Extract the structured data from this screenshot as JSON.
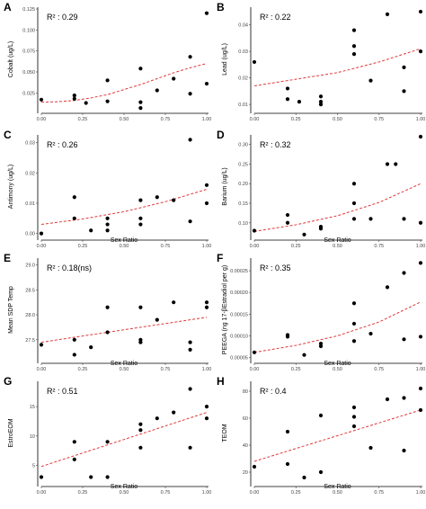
{
  "chart_data": [
    {
      "panel": "A",
      "type": "scatter",
      "r2_label": "R² : 0.29",
      "xlabel": "",
      "ylabel": "Cobalt (ug/L)",
      "xlim": [
        0,
        1
      ],
      "ylim": [
        0.005,
        0.125
      ],
      "x_ticks": [
        "0.00",
        "0.25",
        "0.50",
        "0.75",
        "1.00"
      ],
      "x_tick_values": [
        0,
        0.25,
        0.5,
        0.75,
        1
      ],
      "y_ticks": [
        "0.025",
        "0.050",
        "0.075",
        "0.100",
        "0.125"
      ],
      "y_tick_values": [
        0.025,
        0.05,
        0.075,
        0.1,
        0.125
      ],
      "points": [
        [
          0.0,
          0.017
        ],
        [
          0.2,
          0.022
        ],
        [
          0.2,
          0.018
        ],
        [
          0.27,
          0.013
        ],
        [
          0.4,
          0.015
        ],
        [
          0.4,
          0.04
        ],
        [
          0.6,
          0.054
        ],
        [
          0.6,
          0.014
        ],
        [
          0.6,
          0.007
        ],
        [
          0.7,
          0.028
        ],
        [
          0.8,
          0.042
        ],
        [
          0.9,
          0.068
        ],
        [
          0.9,
          0.024
        ],
        [
          1.0,
          0.12
        ],
        [
          1.0,
          0.036
        ]
      ],
      "trend": [
        [
          0,
          0.014
        ],
        [
          0.1,
          0.0145
        ],
        [
          0.2,
          0.016
        ],
        [
          0.3,
          0.019
        ],
        [
          0.4,
          0.023
        ],
        [
          0.5,
          0.029
        ],
        [
          0.6,
          0.035
        ],
        [
          0.7,
          0.042
        ],
        [
          0.8,
          0.049
        ],
        [
          0.9,
          0.055
        ],
        [
          1.0,
          0.06
        ]
      ]
    },
    {
      "panel": "B",
      "type": "scatter",
      "r2_label": "R² : 0.22",
      "xlabel": "",
      "ylabel": "Lead (ug/L)",
      "xlim": [
        0,
        1
      ],
      "ylim": [
        0.008,
        0.046
      ],
      "x_ticks": [
        "0.00",
        "0.25",
        "0.50",
        "0.75",
        "1.00"
      ],
      "x_tick_values": [
        0,
        0.25,
        0.5,
        0.75,
        1
      ],
      "y_ticks": [
        "0.01",
        "0.02",
        "0.03",
        "0.04"
      ],
      "y_tick_values": [
        0.01,
        0.02,
        0.03,
        0.04
      ],
      "points": [
        [
          0.0,
          0.026
        ],
        [
          0.2,
          0.016
        ],
        [
          0.2,
          0.012
        ],
        [
          0.27,
          0.011
        ],
        [
          0.4,
          0.013
        ],
        [
          0.4,
          0.011
        ],
        [
          0.4,
          0.01
        ],
        [
          0.6,
          0.038
        ],
        [
          0.6,
          0.032
        ],
        [
          0.6,
          0.029
        ],
        [
          0.7,
          0.019
        ],
        [
          0.8,
          0.044
        ],
        [
          0.9,
          0.024
        ],
        [
          0.9,
          0.015
        ],
        [
          1.0,
          0.045
        ],
        [
          1.0,
          0.03
        ]
      ],
      "trend": [
        [
          0,
          0.017
        ],
        [
          0.25,
          0.0195
        ],
        [
          0.5,
          0.022
        ],
        [
          0.75,
          0.026
        ],
        [
          1.0,
          0.031
        ]
      ]
    },
    {
      "panel": "C",
      "type": "scatter",
      "r2_label": "R² : 0.26",
      "xlabel": "Sex Ratio",
      "ylabel": "Antimony (ug/L)",
      "xlim": [
        0,
        1
      ],
      "ylim": [
        -0.001,
        0.032
      ],
      "x_ticks": [
        "0.00",
        "0.25",
        "0.50",
        "0.75",
        "1.00"
      ],
      "x_tick_values": [
        0,
        0.25,
        0.5,
        0.75,
        1
      ],
      "y_ticks": [
        "0.00",
        "0.01",
        "0.02",
        "0.03"
      ],
      "y_tick_values": [
        0,
        0.01,
        0.02,
        0.03
      ],
      "points": [
        [
          0.0,
          0.0
        ],
        [
          0.2,
          0.012
        ],
        [
          0.2,
          0.005
        ],
        [
          0.3,
          0.001
        ],
        [
          0.4,
          0.005
        ],
        [
          0.4,
          0.003
        ],
        [
          0.4,
          0.001
        ],
        [
          0.6,
          0.011
        ],
        [
          0.6,
          0.005
        ],
        [
          0.6,
          0.003
        ],
        [
          0.7,
          0.012
        ],
        [
          0.8,
          0.011
        ],
        [
          0.9,
          0.031
        ],
        [
          0.9,
          0.004
        ],
        [
          1.0,
          0.016
        ],
        [
          1.0,
          0.01
        ]
      ],
      "trend": [
        [
          0,
          0.003
        ],
        [
          0.25,
          0.0048
        ],
        [
          0.5,
          0.0072
        ],
        [
          0.75,
          0.0105
        ],
        [
          1.0,
          0.0146
        ]
      ]
    },
    {
      "panel": "D",
      "type": "scatter",
      "r2_label": "R² : 0.32",
      "xlabel": "Sex Ratio",
      "ylabel": "Barium (ug/L)",
      "xlim": [
        0,
        1
      ],
      "ylim": [
        0.065,
        0.32
      ],
      "x_ticks": [
        "0.00",
        "0.25",
        "0.50",
        "0.75",
        "1.00"
      ],
      "x_tick_values": [
        0,
        0.25,
        0.5,
        0.75,
        1
      ],
      "y_ticks": [
        "0.10",
        "0.15",
        "0.20",
        "0.25",
        "0.30"
      ],
      "y_tick_values": [
        0.1,
        0.15,
        0.2,
        0.25,
        0.3
      ],
      "points": [
        [
          0.0,
          0.08
        ],
        [
          0.2,
          0.12
        ],
        [
          0.2,
          0.1
        ],
        [
          0.3,
          0.07
        ],
        [
          0.4,
          0.09
        ],
        [
          0.4,
          0.085
        ],
        [
          0.6,
          0.2
        ],
        [
          0.6,
          0.15
        ],
        [
          0.6,
          0.11
        ],
        [
          0.7,
          0.11
        ],
        [
          0.8,
          0.25
        ],
        [
          0.85,
          0.25
        ],
        [
          0.9,
          0.11
        ],
        [
          1.0,
          0.32
        ],
        [
          1.0,
          0.1
        ]
      ],
      "trend": [
        [
          0,
          0.078
        ],
        [
          0.25,
          0.095
        ],
        [
          0.5,
          0.118
        ],
        [
          0.75,
          0.152
        ],
        [
          1.0,
          0.2
        ]
      ]
    },
    {
      "panel": "E",
      "type": "scatter",
      "r2_label": "R² : 0.18(ns)",
      "xlabel": "Sex Ratio",
      "ylabel": "Mean SDP Temp",
      "xlim": [
        0,
        1
      ],
      "ylim": [
        27.1,
        29.1
      ],
      "x_ticks": [
        "0.00",
        "0.25",
        "0.50",
        "0.75",
        "1.00"
      ],
      "x_tick_values": [
        0,
        0.25,
        0.5,
        0.75,
        1
      ],
      "y_ticks": [
        "27.5",
        "28.0",
        "28.5",
        "29.0"
      ],
      "y_tick_values": [
        27.5,
        28,
        28.5,
        29
      ],
      "points": [
        [
          0.0,
          27.4
        ],
        [
          0.2,
          27.5
        ],
        [
          0.2,
          27.2
        ],
        [
          0.3,
          27.35
        ],
        [
          0.4,
          28.15
        ],
        [
          0.4,
          27.65
        ],
        [
          0.6,
          28.15
        ],
        [
          0.6,
          27.5
        ],
        [
          0.6,
          27.45
        ],
        [
          0.7,
          27.9
        ],
        [
          0.8,
          28.25
        ],
        [
          0.9,
          27.45
        ],
        [
          0.9,
          27.3
        ],
        [
          1.0,
          28.25
        ],
        [
          1.0,
          28.15
        ]
      ],
      "trend": [
        [
          0,
          27.45
        ],
        [
          1.0,
          27.95
        ]
      ]
    },
    {
      "panel": "F",
      "type": "scatter",
      "r2_label": "R² : 0.35",
      "xlabel": "Sex Ratio",
      "ylabel": "PEEGA (ng 17-βEstradiol per g)",
      "xlim": [
        0,
        1
      ],
      "ylim": [
        4.5e-05,
        0.000275
      ],
      "x_ticks": [
        "0.00",
        "0.25",
        "0.50",
        "0.75",
        "1.00"
      ],
      "x_tick_values": [
        0,
        0.25,
        0.5,
        0.75,
        1
      ],
      "y_ticks": [
        "0.00005",
        "0.00010",
        "0.00015",
        "0.00020",
        "0.00025"
      ],
      "y_tick_values": [
        5e-05,
        0.0001,
        0.00015,
        0.0002,
        0.00025
      ],
      "points": [
        [
          0.0,
          6.2e-05
        ],
        [
          0.2,
          0.000102
        ],
        [
          0.2,
          9.8e-05
        ],
        [
          0.3,
          5.6e-05
        ],
        [
          0.4,
          8.2e-05
        ],
        [
          0.4,
          7.6e-05
        ],
        [
          0.6,
          0.000175
        ],
        [
          0.6,
          0.000128
        ],
        [
          0.6,
          8.8e-05
        ],
        [
          0.7,
          0.000105
        ],
        [
          0.8,
          0.000212
        ],
        [
          0.9,
          0.000245
        ],
        [
          0.9,
          9.2e-05
        ],
        [
          1.0,
          0.000268
        ],
        [
          1.0,
          9.8e-05
        ]
      ],
      "trend": [
        [
          0,
          6.2e-05
        ],
        [
          0.25,
          7.8e-05
        ],
        [
          0.5,
          0.0001
        ],
        [
          0.75,
          0.000132
        ],
        [
          1.0,
          0.000178
        ]
      ]
    },
    {
      "panel": "G",
      "type": "scatter",
      "r2_label": "R² : 0.51",
      "xlabel": "Sex Ratio",
      "ylabel": "EstroEOM",
      "xlim": [
        0,
        1
      ],
      "ylim": [
        2,
        19
      ],
      "x_ticks": [
        "0.00",
        "0.25",
        "0.50",
        "0.75",
        "1.00"
      ],
      "x_tick_values": [
        0,
        0.25,
        0.5,
        0.75,
        1
      ],
      "y_ticks": [
        "5",
        "10",
        "15"
      ],
      "y_tick_values": [
        5,
        10,
        15
      ],
      "points": [
        [
          0.0,
          3.0
        ],
        [
          0.2,
          9.0
        ],
        [
          0.2,
          6.0
        ],
        [
          0.3,
          3.0
        ],
        [
          0.4,
          9.0
        ],
        [
          0.4,
          3.0
        ],
        [
          0.6,
          12.0
        ],
        [
          0.6,
          11.0
        ],
        [
          0.6,
          8.0
        ],
        [
          0.7,
          13.0
        ],
        [
          0.8,
          14.0
        ],
        [
          0.9,
          18.0
        ],
        [
          0.9,
          8.0
        ],
        [
          1.0,
          15.0
        ],
        [
          1.0,
          13.0
        ]
      ],
      "trend": [
        [
          0,
          4.8
        ],
        [
          1.0,
          14.0
        ]
      ]
    },
    {
      "panel": "H",
      "type": "scatter",
      "r2_label": "R² : 0.4",
      "xlabel": "Sex Ratio",
      "ylabel": "TEOM",
      "xlim": [
        0,
        1
      ],
      "ylim": [
        12,
        86
      ],
      "x_ticks": [
        "0.00",
        "0.25",
        "0.50",
        "0.75",
        "1.00"
      ],
      "x_tick_values": [
        0,
        0.25,
        0.5,
        0.75,
        1
      ],
      "y_ticks": [
        "20",
        "40",
        "60",
        "80"
      ],
      "y_tick_values": [
        20,
        40,
        60,
        80
      ],
      "points": [
        [
          0.0,
          24
        ],
        [
          0.2,
          50
        ],
        [
          0.2,
          26
        ],
        [
          0.3,
          16
        ],
        [
          0.4,
          62
        ],
        [
          0.4,
          20
        ],
        [
          0.6,
          68
        ],
        [
          0.6,
          61
        ],
        [
          0.6,
          54
        ],
        [
          0.7,
          38
        ],
        [
          0.8,
          74
        ],
        [
          0.9,
          75
        ],
        [
          0.9,
          36
        ],
        [
          1.0,
          82
        ],
        [
          1.0,
          66
        ]
      ],
      "trend": [
        [
          0,
          28
        ],
        [
          1.0,
          66
        ]
      ]
    }
  ]
}
